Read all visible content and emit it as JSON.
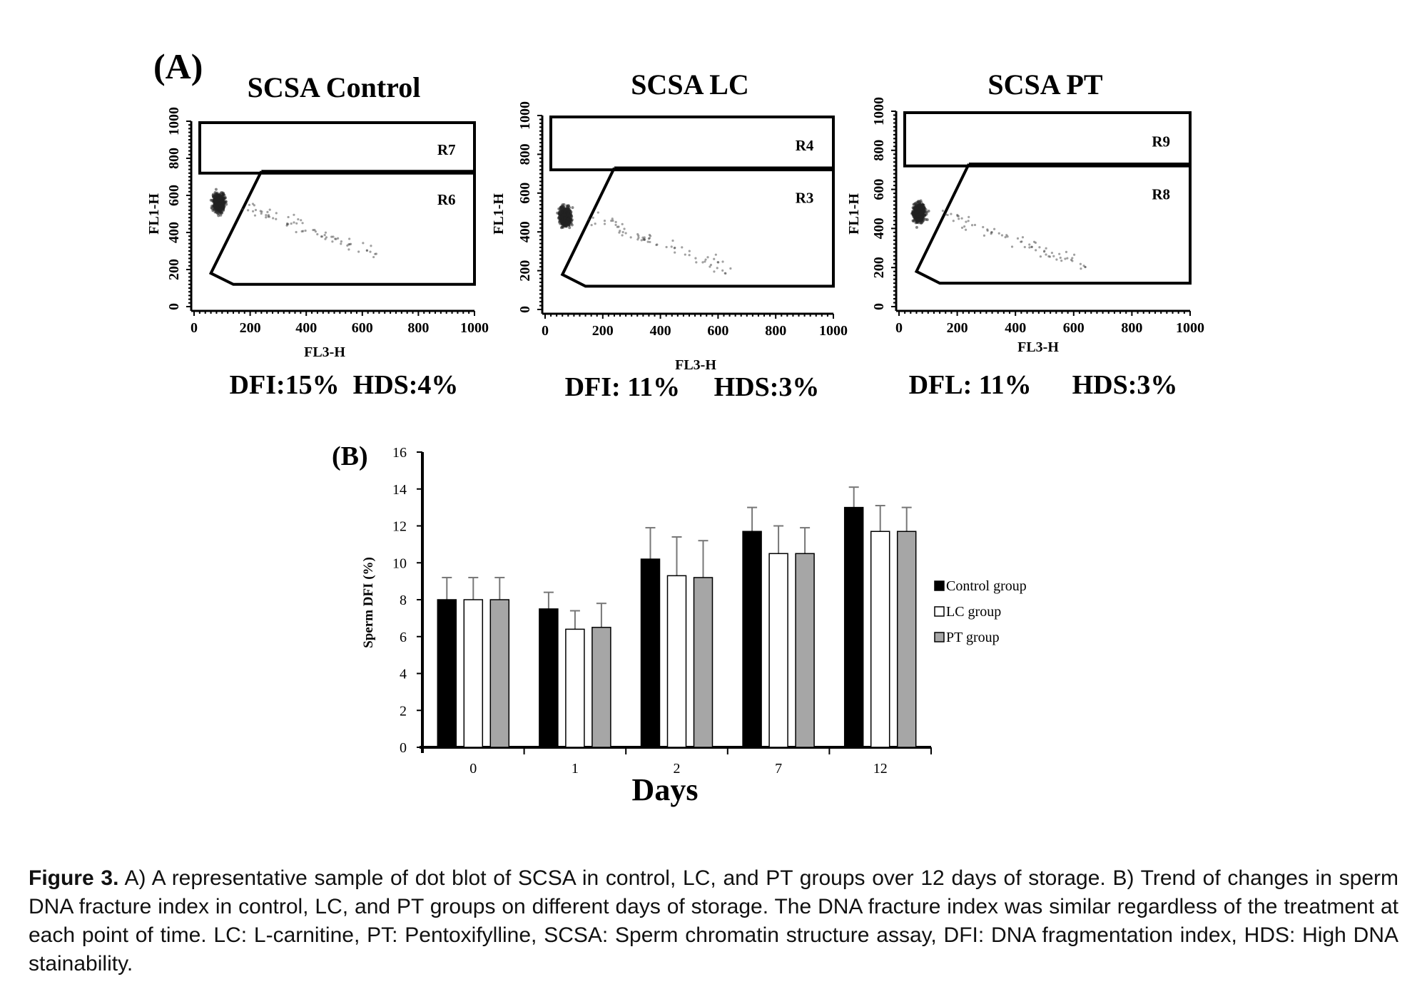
{
  "panel_a": {
    "label": "(A)",
    "plots": [
      {
        "title": "SCSA Control",
        "regions": [
          "R7",
          "R6"
        ],
        "xticks": [
          "0",
          "200",
          "400",
          "600",
          "800",
          "1000"
        ],
        "yticks": [
          "0",
          "200",
          "400",
          "600",
          "800",
          "1000"
        ],
        "xlabel": "FL3-H",
        "ylabel": "FL1-H",
        "stats": "DFI:15%  HDS:4%"
      },
      {
        "title": "SCSA  LC",
        "regions": [
          "R4",
          "R3"
        ],
        "xticks": [
          "0",
          "200",
          "400",
          "600",
          "800",
          "1000"
        ],
        "yticks": [
          "0",
          "200",
          "400",
          "600",
          "800",
          "1000"
        ],
        "xlabel": "FL3-H",
        "ylabel": "FL1-H",
        "stats": "DFI: 11%     HDS:3%"
      },
      {
        "title": "SCSA PT",
        "regions": [
          "R9",
          "R8"
        ],
        "xticks": [
          "0",
          "200",
          "400",
          "600",
          "800",
          "1000"
        ],
        "yticks": [
          "0",
          "200",
          "400",
          "600",
          "800",
          "1000"
        ],
        "xlabel": "FL3-H",
        "ylabel": "FL1-H",
        "stats": "DFL: 11%      HDS:3%"
      }
    ]
  },
  "chart_data": {
    "type": "bar",
    "panel_label": "(B)",
    "categories": [
      "0",
      "1",
      "2",
      "7",
      "12"
    ],
    "series": [
      {
        "name": "Control group",
        "values": [
          8.0,
          7.5,
          10.2,
          11.7,
          13.0
        ],
        "errors": [
          1.2,
          0.9,
          1.7,
          1.3,
          1.1
        ]
      },
      {
        "name": "LC group",
        "values": [
          8.0,
          6.4,
          9.3,
          10.5,
          11.7
        ],
        "errors": [
          1.2,
          1.0,
          2.1,
          1.5,
          1.4
        ]
      },
      {
        "name": "PT group",
        "values": [
          8.0,
          6.5,
          9.2,
          10.5,
          11.7
        ],
        "errors": [
          1.2,
          1.3,
          2.0,
          1.4,
          1.3
        ]
      }
    ],
    "xlabel": "Days",
    "ylabel": "Sperm DFI (%)",
    "ylim": [
      0,
      16
    ],
    "yticks": [
      0,
      2,
      4,
      6,
      8,
      10,
      12,
      14,
      16
    ],
    "legend_position": "right",
    "colors": {
      "Control group": "#000000",
      "LC group": "#ffffff",
      "PT group": "#a6a6a6"
    }
  },
  "caption": {
    "label": "Figure 3.",
    "text": " A) A representative sample of dot blot of SCSA in control, LC, and PT groups over 12 days of storage. B) Trend of changes in sperm DNA fracture index in control, LC, and PT groups on different days of storage. The DNA fracture index was similar regardless of the treatment at each point of time. LC: L-carnitine, PT: Pentoxifylline, SCSA: Sperm chromatin structure assay, DFI: DNA fragmentation index, HDS: High DNA stainability."
  }
}
